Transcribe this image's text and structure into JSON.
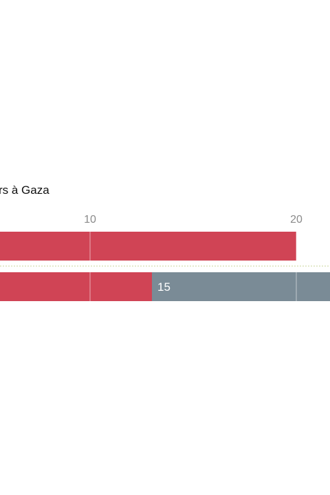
{
  "chart_data": {
    "type": "bar",
    "orientation": "horizontal",
    "stacked": true,
    "title": "rs à Gaza",
    "x_ticks": [
      10,
      20
    ],
    "grid": true,
    "rows": [
      {
        "segments": [
          {
            "start": -5,
            "end": 20,
            "color": "#d04455"
          }
        ]
      },
      {
        "segments": [
          {
            "start": -5,
            "end": 13,
            "color": "#d04455"
          },
          {
            "start": 13,
            "end": 30,
            "color": "#7a8b96",
            "label": "15"
          }
        ]
      }
    ],
    "colors": {
      "text": "#111111",
      "tick": "#8a8a8a",
      "separator": "#c8d49a",
      "gridline": "#ffffff"
    }
  }
}
